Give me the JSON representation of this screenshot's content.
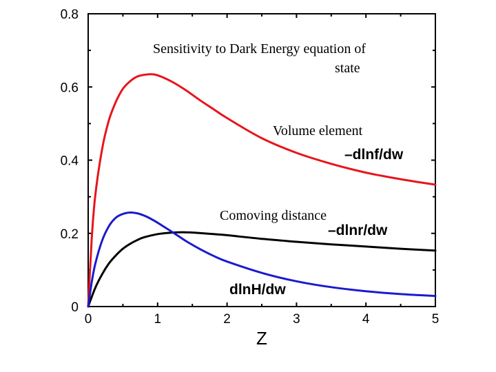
{
  "chart_data": {
    "type": "line",
    "title": "",
    "xlabel": "Z",
    "ylabel": "",
    "xlim": [
      0,
      5
    ],
    "ylim": [
      0,
      0.8
    ],
    "x_ticks": [
      0,
      1,
      2,
      3,
      4,
      5
    ],
    "x_tick_labels": [
      "0",
      "1",
      "2",
      "3",
      "4",
      "5"
    ],
    "y_ticks": [
      0,
      0.2,
      0.4,
      0.6,
      0.8
    ],
    "y_tick_labels": [
      "0",
      "0.2",
      "0.4",
      "0.6",
      "0.8"
    ],
    "annotations": {
      "heading_line1": "Sensitivity to Dark Energy equation of",
      "heading_line2": "state",
      "volume_element": "Volume element",
      "comoving_distance": "Comoving distance"
    },
    "series": [
      {
        "name": "-dlnf/dw",
        "label": "–dlnf/dw",
        "color": "#e8141b",
        "x": [
          0,
          0.05,
          0.1,
          0.2,
          0.3,
          0.4,
          0.5,
          0.6,
          0.7,
          0.8,
          0.9,
          1.0,
          1.2,
          1.4,
          1.6,
          1.8,
          2.0,
          2.5,
          3.0,
          3.5,
          4.0,
          4.5,
          5.0
        ],
        "y": [
          0,
          0.18,
          0.3,
          0.43,
          0.51,
          0.56,
          0.595,
          0.615,
          0.628,
          0.633,
          0.635,
          0.632,
          0.615,
          0.592,
          0.565,
          0.54,
          0.515,
          0.46,
          0.42,
          0.39,
          0.366,
          0.348,
          0.333
        ]
      },
      {
        "name": "-dlnr/dw",
        "label": "–dlnr/dw",
        "color": "#000000",
        "x": [
          0,
          0.1,
          0.2,
          0.3,
          0.4,
          0.5,
          0.6,
          0.7,
          0.8,
          1.0,
          1.2,
          1.4,
          1.6,
          1.8,
          2.0,
          2.5,
          3.0,
          3.5,
          4.0,
          4.5,
          5.0
        ],
        "y": [
          0,
          0.05,
          0.088,
          0.118,
          0.14,
          0.158,
          0.171,
          0.181,
          0.189,
          0.198,
          0.202,
          0.203,
          0.201,
          0.198,
          0.195,
          0.185,
          0.177,
          0.17,
          0.164,
          0.158,
          0.153
        ]
      },
      {
        "name": "dlnH/dw",
        "label": "dlnH/dw",
        "color": "#1a1ad0",
        "x": [
          0,
          0.05,
          0.1,
          0.2,
          0.3,
          0.4,
          0.5,
          0.6,
          0.7,
          0.8,
          0.9,
          1.0,
          1.2,
          1.4,
          1.6,
          1.8,
          2.0,
          2.5,
          3.0,
          3.5,
          4.0,
          4.5,
          5.0
        ],
        "y": [
          0,
          0.065,
          0.115,
          0.18,
          0.22,
          0.243,
          0.253,
          0.257,
          0.255,
          0.249,
          0.24,
          0.229,
          0.205,
          0.18,
          0.158,
          0.139,
          0.123,
          0.092,
          0.069,
          0.053,
          0.042,
          0.034,
          0.029
        ]
      }
    ]
  }
}
